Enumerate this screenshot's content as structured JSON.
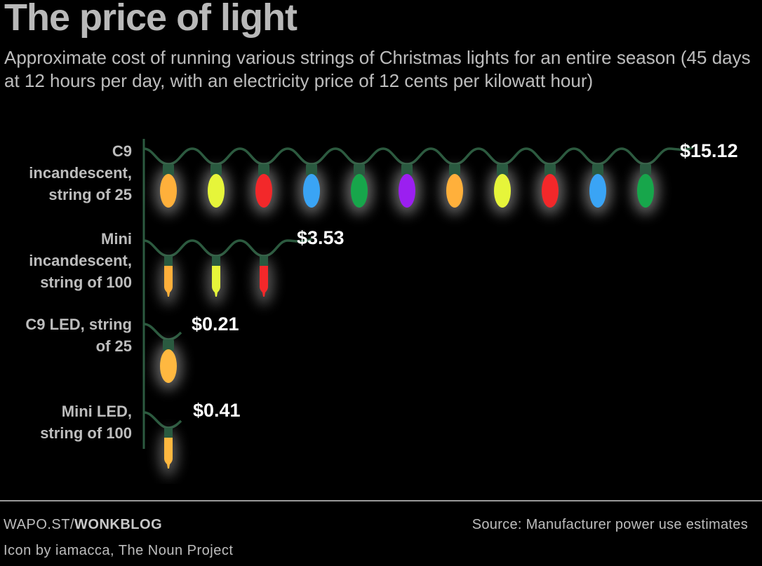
{
  "header": {
    "title": "The price of light",
    "subtitle": "Approximate cost of running various strings of Christmas lights for an entire season (45 days at 12 hours per day, with an electricity price of 12 cents per kilowatt hour)"
  },
  "chart_data": {
    "type": "bar",
    "title": "The price of light",
    "subtitle": "Approximate cost of running various strings of Christmas lights for an entire season (45 days at 12 hours per day, with an electricity price of 12 cents per kilowatt hour)",
    "orientation": "horizontal",
    "xlabel": "",
    "ylabel": "",
    "grid": false,
    "categories": [
      "C9 incandescent, string of 25",
      "Mini incandescent, string of 100",
      "C9 LED, string of 25",
      "Mini LED, string of 100"
    ],
    "values": [
      15.12,
      3.53,
      0.21,
      0.41
    ],
    "value_labels": [
      "$15.12",
      "$3.53",
      "$0.21",
      "$0.41"
    ],
    "units": "USD",
    "bulb_styles": [
      "c9",
      "mini",
      "c9",
      "mini"
    ],
    "bulb_counts_shown": [
      11,
      3,
      1,
      1
    ],
    "bulb_colors": [
      [
        "#ffb03b",
        "#e6f53a",
        "#f3282a",
        "#3aa4f5",
        "#17a64b",
        "#9b1ff0",
        "#ffb03b",
        "#e6f53a",
        "#f3282a",
        "#3aa4f5",
        "#17a64b"
      ],
      [
        "#ffb03b",
        "#e6f53a",
        "#f3282a"
      ],
      [
        "#ffb840"
      ],
      [
        "#ffb840"
      ]
    ],
    "wire_color": "#2c5a3f",
    "socket_color": "#2a5a40",
    "axis_color": "#2c5a3f"
  },
  "rows": [
    {
      "label": "C9 incandescent, string of 25",
      "label_lines": [
        "C9",
        "incandescent,",
        "string of 25"
      ],
      "value_label": "$15.12"
    },
    {
      "label": "Mini incandescent, string of 100",
      "label_lines": [
        "Mini",
        "incandescent,",
        "string of 100"
      ],
      "value_label": "$3.53"
    },
    {
      "label": "C9 LED, string of 25",
      "label_lines": [
        "C9 LED, string",
        "of 25"
      ],
      "value_label": "$0.21"
    },
    {
      "label": "Mini LED, string of 100",
      "label_lines": [
        "Mini LED,",
        "string of 100"
      ],
      "value_label": "$0.41"
    }
  ],
  "footer": {
    "site_prefix": "WAPO.ST/",
    "site_bold": "WONKBLOG",
    "source": "Source: Manufacturer power use estimates",
    "credit": "Icon by iamacca, The Noun Project"
  }
}
